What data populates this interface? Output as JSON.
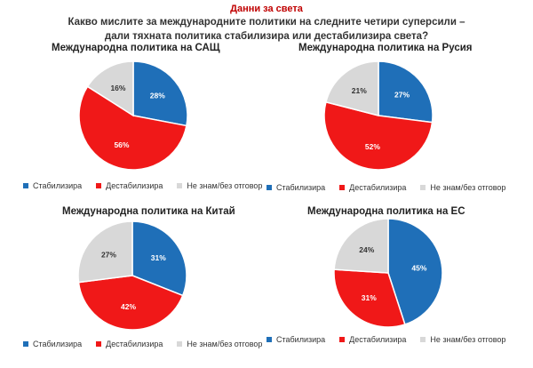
{
  "header": {
    "kicker": "Данни за света",
    "question_line1": "Какво мислите за международните политики на следните четири суперсили –",
    "question_line2": "дали тяхната политика стабилизира или дестабилизира света?"
  },
  "legend_labels": [
    "Стабилизира",
    "Дестабилизира",
    "Не знам/без отговор"
  ],
  "colors": {
    "stabilizes": "#1f6fb8",
    "destabilizes": "#f01818",
    "dont_know": "#d8d8d8"
  },
  "chart_data": [
    {
      "type": "pie",
      "title": "Международна политика на САЩ",
      "categories": [
        "Стабилизира",
        "Дестабилизира",
        "Не знам/без отговор"
      ],
      "values": [
        28,
        56,
        16
      ],
      "labels": [
        "28%",
        "56%",
        "16%"
      ]
    },
    {
      "type": "pie",
      "title": "Международна политика на Русия",
      "categories": [
        "Стабилизира",
        "Дестабилизира",
        "Не знам/без отговор"
      ],
      "values": [
        27,
        52,
        21
      ],
      "labels": [
        "27%",
        "52%",
        "21%"
      ]
    },
    {
      "type": "pie",
      "title": "Международна политика на Китай",
      "categories": [
        "Стабилизира",
        "Дестабилизира",
        "Не знам/без отговор"
      ],
      "values": [
        31,
        42,
        27
      ],
      "labels": [
        "31%",
        "42%",
        "27%"
      ]
    },
    {
      "type": "pie",
      "title": "Международна политика на ЕС",
      "categories": [
        "Стабилизира",
        "Дестабилизира",
        "Не знам/без отговор"
      ],
      "values": [
        45,
        31,
        24
      ],
      "labels": [
        "45%",
        "31%",
        "24%"
      ]
    }
  ]
}
